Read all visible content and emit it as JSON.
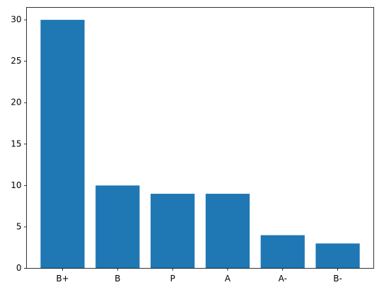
{
  "chart_data": {
    "type": "bar",
    "categories": [
      "B+",
      "B",
      "P",
      "A",
      "A-",
      "B-"
    ],
    "values": [
      30,
      10,
      9,
      9,
      4,
      3
    ],
    "color": "#1f77b4",
    "ylim": [
      0,
      31.5
    ],
    "yticks": [
      0,
      5,
      10,
      15,
      20,
      25,
      30
    ],
    "grid": false
  }
}
